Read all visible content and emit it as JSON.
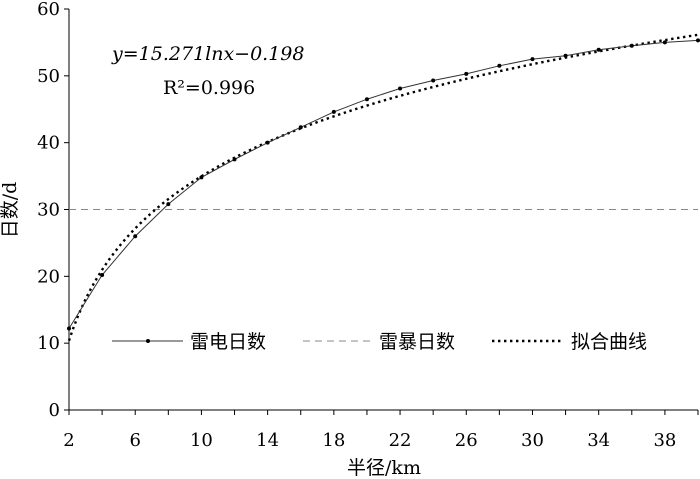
{
  "chart_data": {
    "type": "line",
    "xlabel": "半径/km",
    "ylabel": "日数/d",
    "xlim": [
      2,
      40
    ],
    "ylim": [
      0,
      60
    ],
    "x_ticks": [
      2,
      6,
      10,
      14,
      18,
      22,
      26,
      30,
      34,
      38
    ],
    "y_ticks": [
      0,
      10,
      20,
      30,
      40,
      50,
      60
    ],
    "grid": false,
    "legend_position": "lower-right, inside plot",
    "annotations": {
      "equation": "y=15.271lnx−0.198",
      "r_squared": "R²=0.996"
    },
    "series": [
      {
        "name": "雷电日数",
        "style": "solid line with dot markers",
        "x": [
          2,
          4,
          6,
          8,
          10,
          12,
          14,
          16,
          18,
          20,
          22,
          24,
          26,
          28,
          30,
          32,
          34,
          36,
          38,
          40
        ],
        "values": [
          12.2,
          20.2,
          26.0,
          30.8,
          34.8,
          37.5,
          40.0,
          42.3,
          44.6,
          46.5,
          48.1,
          49.3,
          50.3,
          51.5,
          52.5,
          53.0,
          53.9,
          54.5,
          55.0,
          55.3
        ]
      },
      {
        "name": "雷暴日数",
        "style": "dashed horizontal line",
        "x": [
          2,
          40
        ],
        "values": [
          30,
          30
        ]
      },
      {
        "name": "拟合曲线",
        "style": "dotted line",
        "function": "y = 15.271*ln(x) - 0.198",
        "x": [
          2,
          40
        ]
      }
    ],
    "colors": {
      "axis": "#000000",
      "series_line": "#333333",
      "dashed_line": "#888888",
      "fit_line": "#000000"
    }
  }
}
